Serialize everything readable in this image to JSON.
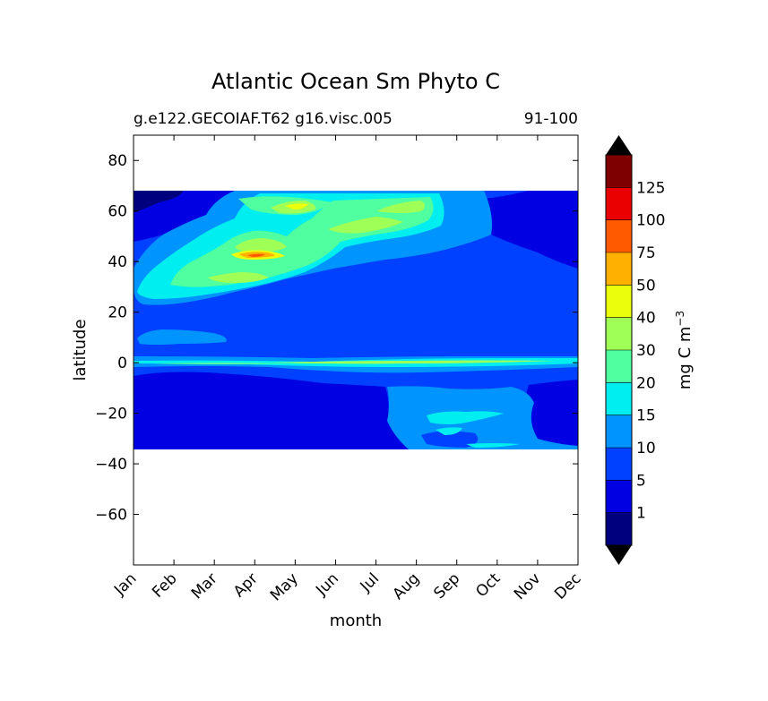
{
  "chart_data": {
    "type": "contour",
    "title": "Atlantic Ocean Sm Phyto C",
    "subtitle_left": "g.e122.GECOIAF.T62 g16.visc.005",
    "subtitle_right": "91-100",
    "xlabel": "month",
    "ylabel": "latitude",
    "x_ticks": [
      "Jan",
      "Feb",
      "Mar",
      "Apr",
      "May",
      "Jun",
      "Jul",
      "Aug",
      "Sep",
      "Oct",
      "Nov",
      "Dec"
    ],
    "y_ticks": [
      "80",
      "60",
      "40",
      "20",
      "0",
      "−20",
      "−40",
      "−60"
    ],
    "y_tick_values": [
      80,
      60,
      40,
      20,
      0,
      -20,
      -40,
      -60
    ],
    "ylim": [
      -80,
      90
    ],
    "data_lat_range": [
      -34,
      69
    ],
    "colorbar": {
      "label": "mg C m",
      "label_sup": "−3",
      "levels": [
        "1",
        "5",
        "10",
        "15",
        "20",
        "30",
        "40",
        "50",
        "75",
        "100",
        "125"
      ],
      "level_values": [
        1,
        5,
        10,
        15,
        20,
        30,
        40,
        50,
        75,
        100,
        125
      ],
      "colors": [
        "#00007f",
        "#0000e3",
        "#0040ff",
        "#0094ff",
        "#00eef0",
        "#50ff9f",
        "#a0ff56",
        "#ebff0c",
        "#ffb000",
        "#ff5a00",
        "#eb0000",
        "#7f0000"
      ],
      "extend": "both"
    }
  }
}
